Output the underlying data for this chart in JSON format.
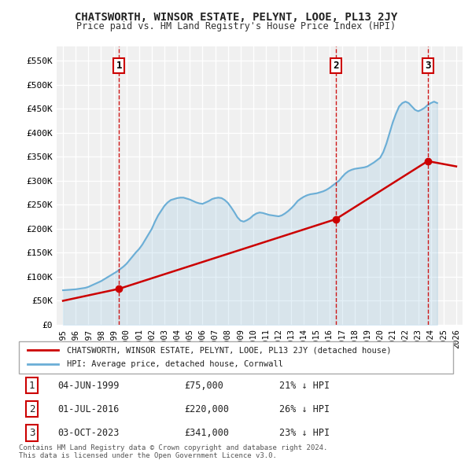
{
  "title": "CHATSWORTH, WINSOR ESTATE, PELYNT, LOOE, PL13 2JY",
  "subtitle": "Price paid vs. HM Land Registry's House Price Index (HPI)",
  "legend_line1": "CHATSWORTH, WINSOR ESTATE, PELYNT, LOOE, PL13 2JY (detached house)",
  "legend_line2": "HPI: Average price, detached house, Cornwall",
  "transactions": [
    {
      "num": 1,
      "date": "04-JUN-1999",
      "price": 75000,
      "pct": "21%",
      "x_year": 1999.42
    },
    {
      "num": 2,
      "date": "01-JUL-2016",
      "price": 220000,
      "pct": "26%",
      "x_year": 2016.5
    },
    {
      "num": 3,
      "date": "03-OCT-2023",
      "price": 341000,
      "pct": "23%",
      "x_year": 2023.75
    }
  ],
  "ylim": [
    0,
    580000
  ],
  "xlim": [
    1994.5,
    2026.5
  ],
  "yticks": [
    0,
    50000,
    100000,
    150000,
    200000,
    250000,
    300000,
    350000,
    400000,
    450000,
    500000,
    550000
  ],
  "ytick_labels": [
    "£0",
    "£50K",
    "£100K",
    "£150K",
    "£200K",
    "£250K",
    "£300K",
    "£350K",
    "£400K",
    "£450K",
    "£500K",
    "£550K"
  ],
  "xticks": [
    1995,
    1996,
    1997,
    1998,
    1999,
    2000,
    2001,
    2002,
    2003,
    2004,
    2005,
    2006,
    2007,
    2008,
    2009,
    2010,
    2011,
    2012,
    2013,
    2014,
    2015,
    2016,
    2017,
    2018,
    2019,
    2020,
    2021,
    2022,
    2023,
    2024,
    2025,
    2026
  ],
  "background_color": "#f0f0f0",
  "grid_color": "#ffffff",
  "hpi_color": "#6baed6",
  "price_color": "#cc0000",
  "dot_color": "#cc0000",
  "vline_color": "#cc0000",
  "label_box_color": "#cc0000",
  "footer": "Contains HM Land Registry data © Crown copyright and database right 2024.\nThis data is licensed under the Open Government Licence v3.0.",
  "hpi_data_x": [
    1995,
    1995.25,
    1995.5,
    1995.75,
    1996,
    1996.25,
    1996.5,
    1996.75,
    1997,
    1997.25,
    1997.5,
    1997.75,
    1998,
    1998.25,
    1998.5,
    1998.75,
    1999,
    1999.25,
    1999.5,
    1999.75,
    2000,
    2000.25,
    2000.5,
    2000.75,
    2001,
    2001.25,
    2001.5,
    2001.75,
    2002,
    2002.25,
    2002.5,
    2002.75,
    2003,
    2003.25,
    2003.5,
    2003.75,
    2004,
    2004.25,
    2004.5,
    2004.75,
    2005,
    2005.25,
    2005.5,
    2005.75,
    2006,
    2006.25,
    2006.5,
    2006.75,
    2007,
    2007.25,
    2007.5,
    2007.75,
    2008,
    2008.25,
    2008.5,
    2008.75,
    2009,
    2009.25,
    2009.5,
    2009.75,
    2010,
    2010.25,
    2010.5,
    2010.75,
    2011,
    2011.25,
    2011.5,
    2011.75,
    2012,
    2012.25,
    2012.5,
    2012.75,
    2013,
    2013.25,
    2013.5,
    2013.75,
    2014,
    2014.25,
    2014.5,
    2014.75,
    2015,
    2015.25,
    2015.5,
    2015.75,
    2016,
    2016.25,
    2016.5,
    2016.75,
    2017,
    2017.25,
    2017.5,
    2017.75,
    2018,
    2018.25,
    2018.5,
    2018.75,
    2019,
    2019.25,
    2019.5,
    2019.75,
    2020,
    2020.25,
    2020.5,
    2020.75,
    2021,
    2021.25,
    2021.5,
    2021.75,
    2022,
    2022.25,
    2022.5,
    2022.75,
    2023,
    2023.25,
    2023.5,
    2023.75,
    2024,
    2024.25,
    2024.5
  ],
  "hpi_data_y": [
    72000,
    72500,
    73000,
    73500,
    74000,
    75000,
    76000,
    77000,
    79000,
    82000,
    85000,
    88000,
    91000,
    95000,
    99000,
    103000,
    107000,
    111000,
    116000,
    121000,
    127000,
    135000,
    143000,
    151000,
    158000,
    167000,
    178000,
    189000,
    200000,
    215000,
    228000,
    238000,
    248000,
    255000,
    260000,
    262000,
    264000,
    265000,
    265000,
    263000,
    261000,
    258000,
    255000,
    253000,
    252000,
    255000,
    258000,
    262000,
    264000,
    265000,
    264000,
    260000,
    254000,
    245000,
    235000,
    224000,
    217000,
    215000,
    218000,
    222000,
    228000,
    232000,
    234000,
    233000,
    231000,
    229000,
    228000,
    227000,
    226000,
    228000,
    232000,
    237000,
    243000,
    250000,
    258000,
    263000,
    267000,
    270000,
    272000,
    273000,
    274000,
    276000,
    278000,
    281000,
    285000,
    290000,
    295000,
    300000,
    308000,
    315000,
    320000,
    323000,
    325000,
    326000,
    327000,
    328000,
    330000,
    334000,
    338000,
    343000,
    348000,
    360000,
    378000,
    400000,
    422000,
    440000,
    455000,
    462000,
    465000,
    462000,
    455000,
    448000,
    445000,
    448000,
    452000,
    458000,
    462000,
    465000,
    462000
  ],
  "price_data_x": [
    1995,
    1999.42,
    2016.5,
    2023.75,
    2024.5
  ],
  "price_data_y": [
    50000,
    75000,
    220000,
    341000,
    330000
  ]
}
